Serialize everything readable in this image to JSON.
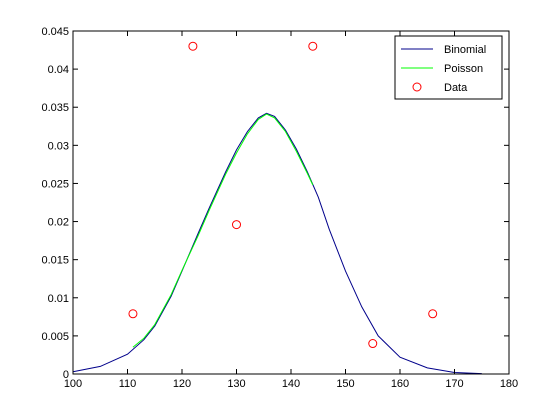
{
  "chart_data": {
    "type": "line",
    "title": "",
    "xlabel": "",
    "ylabel": "",
    "xlim": [
      100,
      180
    ],
    "ylim": [
      0,
      0.045
    ],
    "xticks": [
      100,
      110,
      120,
      130,
      140,
      150,
      160,
      170,
      180
    ],
    "xtick_labels": [
      "100",
      "110",
      "120",
      "130",
      "140",
      "150",
      "160",
      "170",
      "180"
    ],
    "yticks": [
      0,
      0.005,
      0.01,
      0.015,
      0.02,
      0.025,
      0.03,
      0.035,
      0.04,
      0.045
    ],
    "ytick_labels": [
      "0",
      "0.005",
      "0.01",
      "0.015",
      "0.02",
      "0.025",
      "0.03",
      "0.035",
      "0.04",
      "0.045"
    ],
    "grid": false,
    "legend_position": "top-right",
    "series": [
      {
        "name": "Binomial",
        "style": "line",
        "color": "#00008b",
        "x": [
          100,
          105,
          110,
          113,
          115,
          118,
          120,
          123,
          125,
          128,
          130,
          132,
          134,
          135.5,
          137,
          139,
          141,
          143,
          145,
          147,
          150,
          153,
          156,
          160,
          165,
          170,
          175
        ],
        "y": [
          0.0003,
          0.001,
          0.0026,
          0.0045,
          0.0063,
          0.0102,
          0.0135,
          0.0185,
          0.0218,
          0.0265,
          0.0294,
          0.0318,
          0.0336,
          0.0342,
          0.0338,
          0.032,
          0.0295,
          0.0265,
          0.0232,
          0.019,
          0.0135,
          0.0088,
          0.005,
          0.0022,
          0.0008,
          0.0002,
          5e-05
        ]
      },
      {
        "name": "Poisson",
        "style": "line",
        "color": "#00ff00",
        "x": [
          111,
          113,
          115,
          118,
          120,
          123,
          125,
          128,
          130,
          132,
          134,
          135.5,
          137,
          139,
          141,
          143,
          144
        ],
        "y": [
          0.0035,
          0.0047,
          0.0065,
          0.0104,
          0.0136,
          0.0182,
          0.0215,
          0.0262,
          0.029,
          0.0315,
          0.0334,
          0.0341,
          0.0336,
          0.0318,
          0.0292,
          0.0263,
          0.0248
        ]
      },
      {
        "name": "Data",
        "style": "markers",
        "marker": "circle",
        "color": "#ff0000",
        "x": [
          111,
          122,
          130,
          144,
          155,
          166
        ],
        "y": [
          0.0079,
          0.043,
          0.0196,
          0.043,
          0.004,
          0.0079
        ]
      }
    ]
  }
}
